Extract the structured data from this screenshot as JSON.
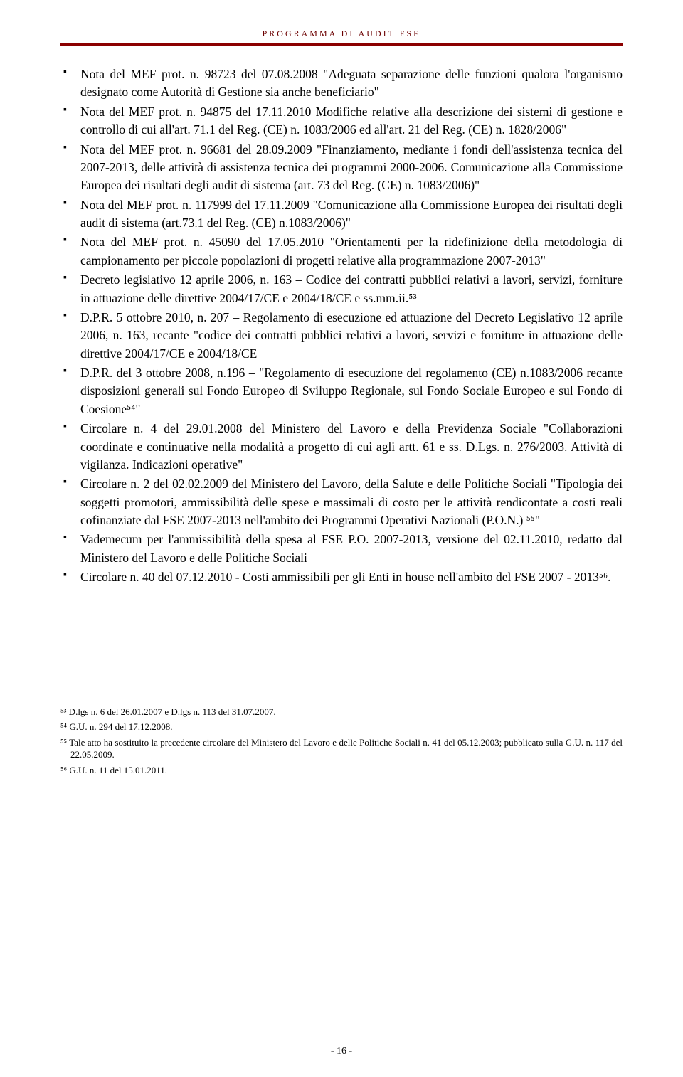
{
  "header": "PROGRAMMA DI AUDIT FSE",
  "items": [
    "Nota del MEF prot. n. 98723 del 07.08.2008 \"Adeguata separazione delle funzioni qualora l'organismo designato come Autorità di Gestione sia anche beneficiario\"",
    "Nota del MEF prot. n. 94875 del 17.11.2010 Modifiche relative alla descrizione dei sistemi di gestione e controllo di cui all'art. 71.1 del Reg. (CE) n. 1083/2006 ed all'art. 21 del Reg. (CE) n. 1828/2006\"",
    "Nota del MEF prot. n. 96681 del 28.09.2009 \"Finanziamento, mediante i fondi dell'assistenza tecnica del 2007-2013, delle attività di assistenza tecnica dei programmi 2000-2006. Comunicazione alla Commissione Europea dei risultati degli audit di sistema (art. 73 del Reg. (CE) n. 1083/2006)\"",
    "Nota del MEF prot. n. 117999 del 17.11.2009 \"Comunicazione alla Commissione Europea dei risultati degli audit di sistema (art.73.1 del Reg. (CE) n.1083/2006)\"",
    "Nota del MEF prot. n. 45090 del 17.05.2010 \"Orientamenti per la ridefinizione della metodologia di campionamento per piccole popolazioni di progetti relative alla programmazione 2007-2013\"",
    "Decreto legislativo 12 aprile 2006, n. 163 – Codice dei contratti pubblici relativi a lavori, servizi, forniture in attuazione delle direttive 2004/17/CE e 2004/18/CE e ss.mm.ii.⁵³",
    "D.P.R. 5 ottobre 2010, n. 207 – Regolamento di esecuzione ed attuazione del Decreto Legislativo 12 aprile 2006, n. 163, recante \"codice dei contratti pubblici relativi a lavori, servizi e forniture in attuazione delle direttive 2004/17/CE e 2004/18/CE",
    "D.P.R. del 3 ottobre 2008, n.196 – \"Regolamento di esecuzione del regolamento (CE) n.1083/2006 recante disposizioni generali sul Fondo Europeo di Sviluppo Regionale, sul Fondo Sociale Europeo e sul Fondo di Coesione⁵⁴\"",
    "Circolare n. 4 del 29.01.2008 del Ministero del Lavoro e della Previdenza Sociale \"Collaborazioni coordinate e continuative nella modalità a progetto di cui agli artt. 61 e ss. D.Lgs. n. 276/2003. Attività di vigilanza. Indicazioni operative\"",
    "Circolare n. 2 del 02.02.2009 del Ministero del Lavoro, della Salute e delle Politiche Sociali \"Tipologia dei soggetti promotori, ammissibilità delle spese e massimali di costo per le attività rendicontate a costi reali cofinanziate dal FSE 2007-2013 nell'ambito dei Programmi Operativi Nazionali (P.O.N.) ⁵⁵\"",
    "Vademecum per l'ammissibilità della spesa al FSE P.O. 2007-2013, versione del 02.11.2010, redatto dal Ministero del Lavoro e delle Politiche Sociali",
    "Circolare  n. 40 del 07.12.2010 - Costi ammissibili per gli Enti in house nell'ambito del FSE 2007 - 2013⁵⁶."
  ],
  "footnotes": [
    "⁵³ D.lgs n. 6 del 26.01.2007 e D.lgs n. 113 del 31.07.2007.",
    "⁵⁴ G.U. n. 294 del 17.12.2008.",
    "⁵⁵ Tale atto ha sostituito la precedente circolare del Ministero del Lavoro e delle Politiche Sociali n. 41 del 05.12.2003; pubblicato sulla G.U. n. 117 del 22.05.2009.",
    "⁵⁶ G.U. n. 11 del 15.01.2011."
  ],
  "pageNumber": "- 16 -"
}
